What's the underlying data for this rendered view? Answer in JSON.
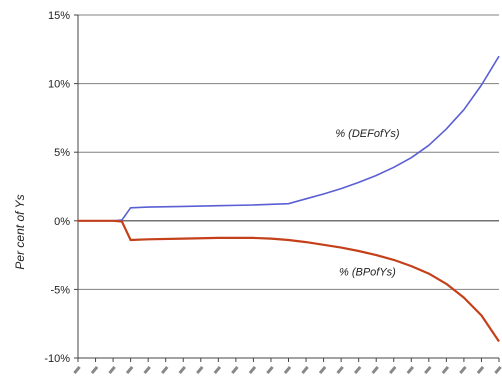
{
  "chart_data": {
    "type": "line",
    "title": "",
    "xlabel": "",
    "ylabel": "Per cent of Ys",
    "ylim": [
      -10,
      15
    ],
    "y_ticks": [
      15,
      10,
      5,
      0,
      -5,
      -10
    ],
    "y_tick_labels": [
      "15%",
      "10%",
      "5%",
      "0%",
      "-5%",
      "-10%"
    ],
    "x_ticks_count": 25,
    "xlim": [
      0,
      24
    ],
    "grid": true,
    "colors": {
      "upper": "#5a5fd4",
      "lower": "#c4401a",
      "grid": "#808080"
    },
    "series": [
      {
        "name": "% (DEFofYs)",
        "x": [
          0,
          1,
          2,
          2.5,
          3,
          4,
          6,
          8,
          10,
          11,
          12,
          13,
          14,
          15,
          16,
          17,
          18,
          19,
          20,
          21,
          22,
          23,
          24
        ],
        "values": [
          0,
          0,
          0,
          0.05,
          0.95,
          1.0,
          1.05,
          1.1,
          1.15,
          1.2,
          1.25,
          1.6,
          1.95,
          2.35,
          2.8,
          3.3,
          3.9,
          4.6,
          5.5,
          6.7,
          8.1,
          9.9,
          12.0
        ]
      },
      {
        "name": "% (BPofYs)",
        "x": [
          0,
          1,
          2,
          2.5,
          3,
          4,
          6,
          8,
          10,
          11,
          12,
          13,
          14,
          15,
          16,
          17,
          18,
          19,
          20,
          21,
          22,
          23,
          24
        ],
        "values": [
          0,
          0,
          0,
          -0.05,
          -1.4,
          -1.35,
          -1.3,
          -1.25,
          -1.25,
          -1.3,
          -1.4,
          -1.55,
          -1.75,
          -1.95,
          -2.2,
          -2.5,
          -2.85,
          -3.3,
          -3.85,
          -4.6,
          -5.6,
          -6.9,
          -8.8
        ]
      }
    ],
    "annotations": [
      {
        "text": "% (DEFofYs)",
        "series": 0
      },
      {
        "text": "% (BPofYs)",
        "series": 1
      }
    ]
  }
}
